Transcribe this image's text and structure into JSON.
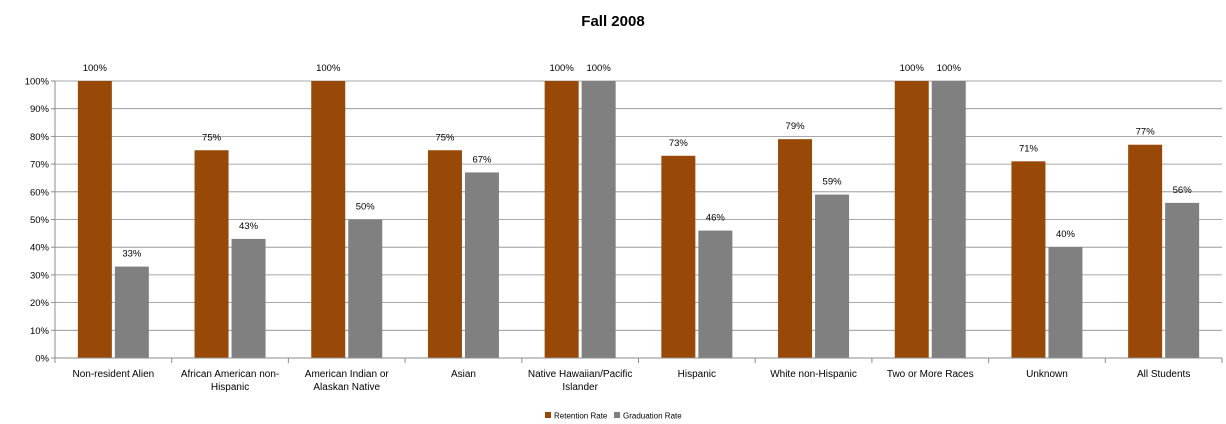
{
  "chart_data": {
    "type": "bar",
    "title": "Fall 2008",
    "xlabel": "",
    "ylabel": "",
    "ylim": [
      0,
      100
    ],
    "yticks": [
      "0%",
      "10%",
      "20%",
      "30%",
      "40%",
      "50%",
      "60%",
      "70%",
      "80%",
      "90%",
      "100%"
    ],
    "grid": true,
    "legend_position": "bottom",
    "categories": [
      [
        "Non-resident  Alien"
      ],
      [
        "African American non-",
        "Hispanic"
      ],
      [
        "American Indian or",
        "Alaskan Native"
      ],
      [
        "Asian"
      ],
      [
        "Native Hawaiian/Pacific",
        "Islander"
      ],
      [
        "Hispanic"
      ],
      [
        "White non-Hispanic"
      ],
      [
        "Two or More Races"
      ],
      [
        "Unknown"
      ],
      [
        "All Students"
      ]
    ],
    "series": [
      {
        "name": "Retention Rate",
        "color": "#984807",
        "values": [
          100,
          75,
          100,
          75,
          100,
          73,
          79,
          100,
          71,
          77
        ],
        "labels": [
          "100%",
          "75%",
          "100%",
          "75%",
          "100%",
          "73%",
          "79%",
          "100%",
          "71%",
          "77%"
        ]
      },
      {
        "name": "Graduation Rate",
        "color": "#808080",
        "values": [
          33,
          43,
          50,
          67,
          100,
          46,
          59,
          100,
          40,
          56
        ],
        "labels": [
          "33%",
          "43%",
          "50%",
          "67%",
          "100%",
          "46%",
          "59%",
          "100%",
          "40%",
          "56%"
        ]
      }
    ]
  }
}
